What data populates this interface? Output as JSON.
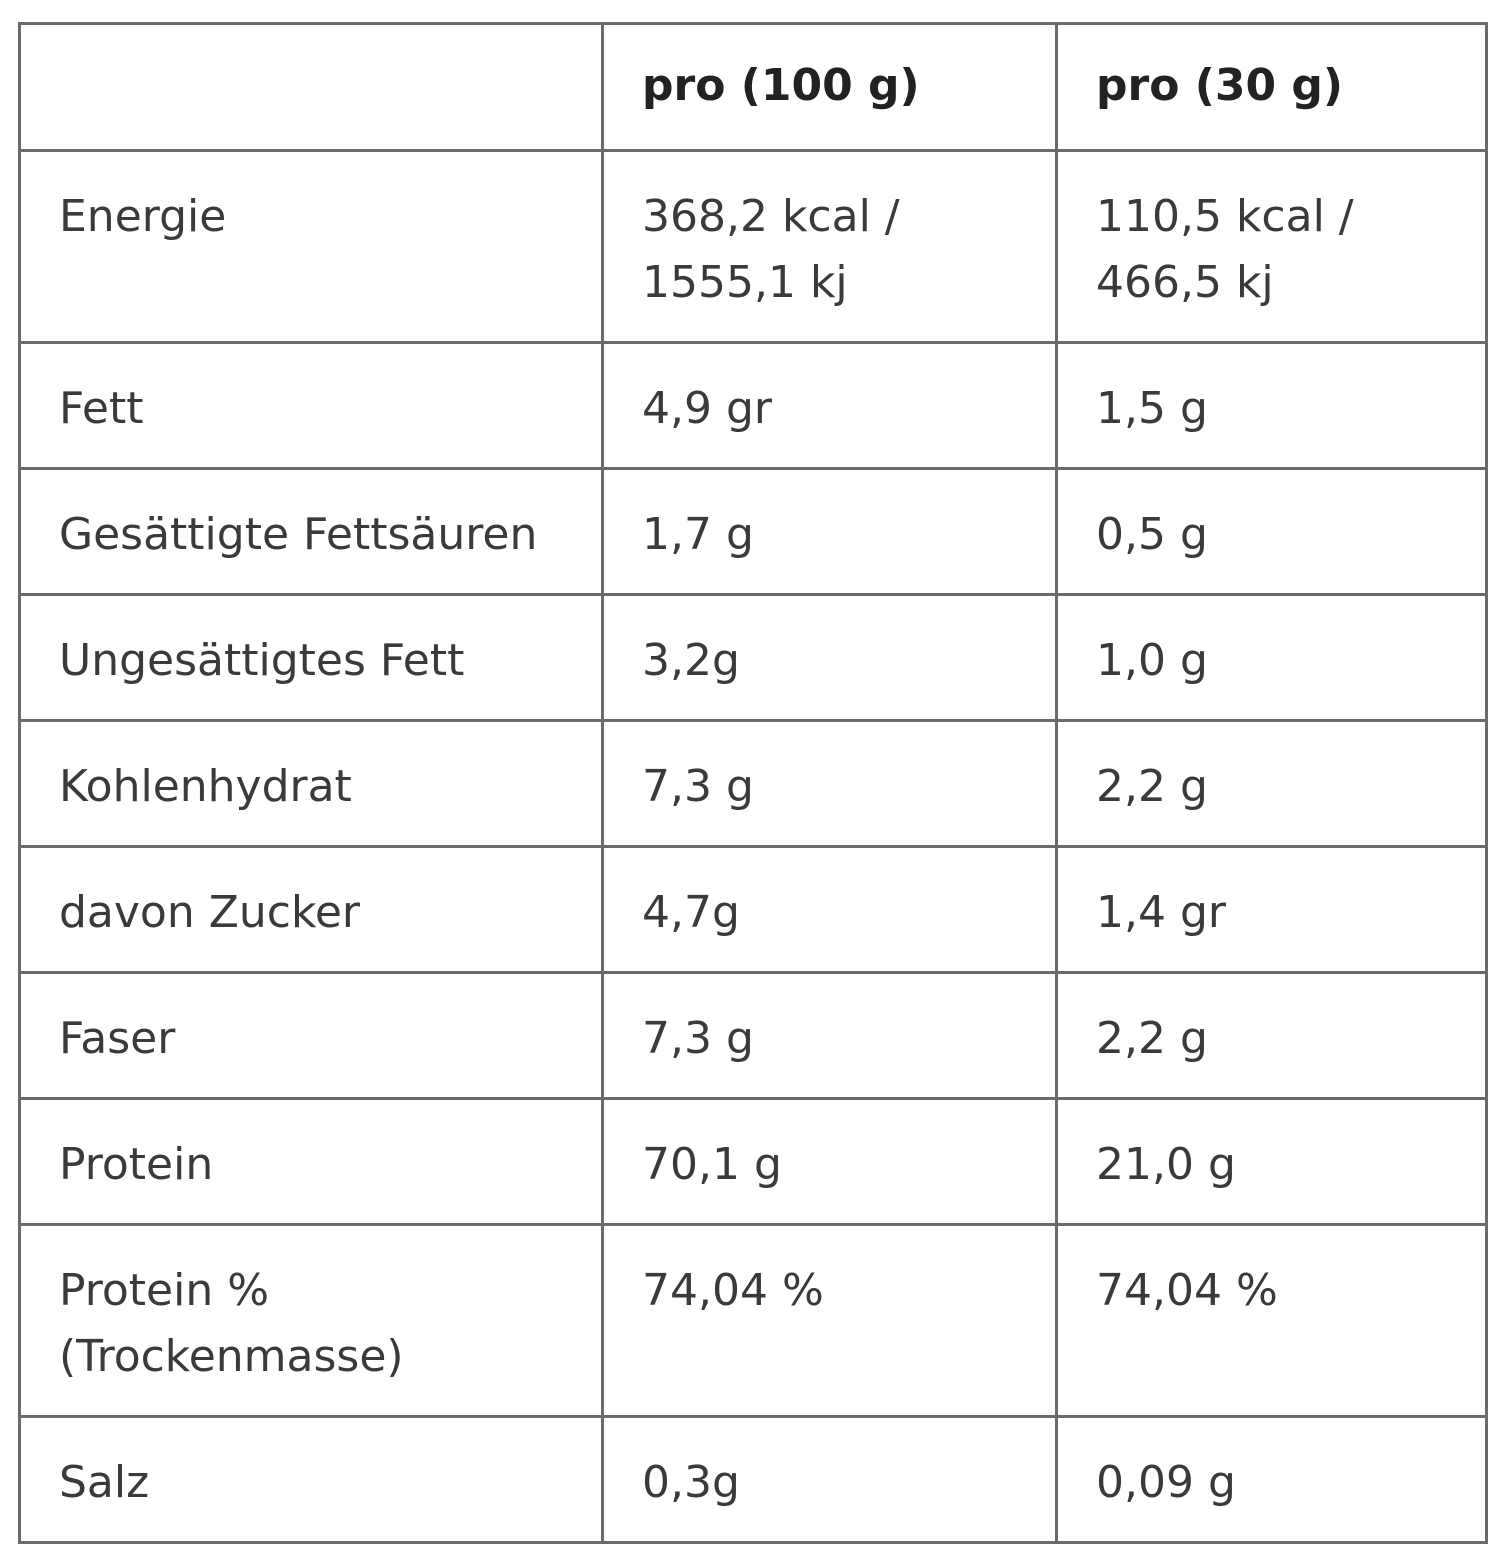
{
  "table": {
    "header": {
      "label": "",
      "col1": "pro (100 g)",
      "col2": "pro (30 g)"
    },
    "rows": [
      {
        "label": "Energie",
        "v100": "368,2 kcal /\n1555,1 kj",
        "v30": "110,5 kcal /\n466,5 kj"
      },
      {
        "label": "Fett",
        "v100": "4,9 gr",
        "v30": "1,5 g"
      },
      {
        "label": "Gesättigte Fettsäuren",
        "v100": "1,7 g",
        "v30": "0,5 g"
      },
      {
        "label": "Ungesättigtes Fett",
        "v100": "3,2g",
        "v30": "1,0 g"
      },
      {
        "label": "Kohlenhydrat",
        "v100": "7,3 g",
        "v30": "2,2 g"
      },
      {
        "label": "davon Zucker",
        "v100": "4,7g",
        "v30": "1,4 gr"
      },
      {
        "label": "Faser",
        "v100": "7,3 g",
        "v30": "2,2 g"
      },
      {
        "label": "Protein",
        "v100": "70,1 g",
        "v30": "21,0 g"
      },
      {
        "label": "Protein %\n(Trockenmasse)",
        "v100": "74,04 %",
        "v30": "74,04 %"
      },
      {
        "label": "Salz",
        "v100": "0,3g",
        "v30": "0,09 g"
      }
    ]
  }
}
